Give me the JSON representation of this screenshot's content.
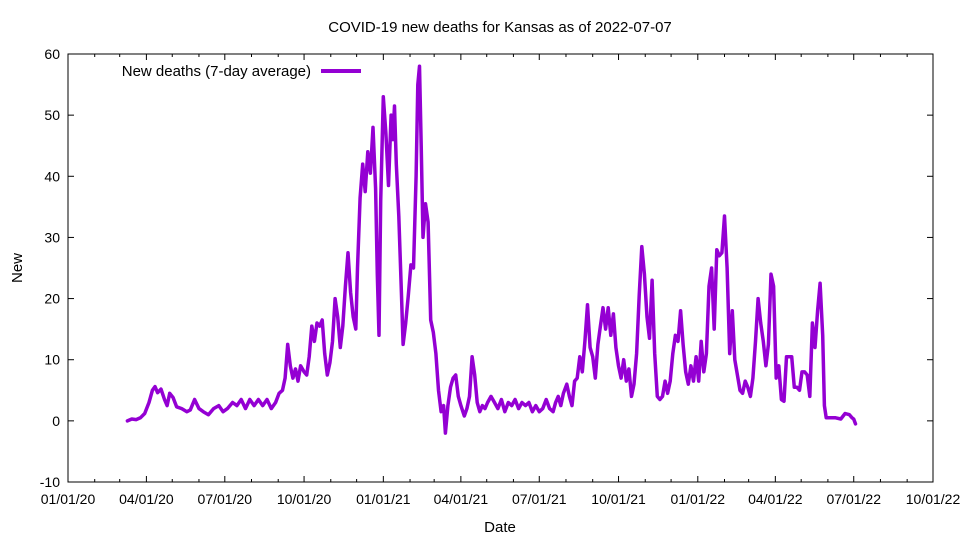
{
  "chart_data": {
    "type": "line",
    "title": "COVID-19 new deaths for Kansas as of 2022-07-07",
    "xlabel": "Date",
    "ylabel": "New",
    "xlim": [
      "2020-01-01",
      "2022-10-01"
    ],
    "ylim": [
      -10,
      60
    ],
    "x_ticks": [
      "01/01/20",
      "04/01/20",
      "07/01/20",
      "10/01/20",
      "01/01/21",
      "04/01/21",
      "07/01/21",
      "10/01/21",
      "01/01/22",
      "04/01/22",
      "07/01/22",
      "10/01/22"
    ],
    "x_tick_dates": [
      "2020-01-01",
      "2020-04-01",
      "2020-07-01",
      "2020-10-01",
      "2021-01-01",
      "2021-04-01",
      "2021-07-01",
      "2021-10-01",
      "2022-01-01",
      "2022-04-01",
      "2022-07-01",
      "2022-10-01"
    ],
    "y_ticks": [
      -10,
      0,
      10,
      20,
      30,
      40,
      50,
      60
    ],
    "legend_position": "top-left",
    "grid": false,
    "series": [
      {
        "name": "New deaths (7-day average)",
        "color": "#9400d3",
        "points": [
          [
            "2020-03-10",
            0.0
          ],
          [
            "2020-03-15",
            0.3
          ],
          [
            "2020-03-20",
            0.2
          ],
          [
            "2020-03-25",
            0.5
          ],
          [
            "2020-03-30",
            1.2
          ],
          [
            "2020-04-04",
            3.0
          ],
          [
            "2020-04-08",
            5.0
          ],
          [
            "2020-04-11",
            5.6
          ],
          [
            "2020-04-14",
            4.6
          ],
          [
            "2020-04-18",
            5.2
          ],
          [
            "2020-04-22",
            3.5
          ],
          [
            "2020-04-25",
            2.5
          ],
          [
            "2020-04-28",
            4.5
          ],
          [
            "2020-05-02",
            3.8
          ],
          [
            "2020-05-06",
            2.3
          ],
          [
            "2020-05-12",
            2.0
          ],
          [
            "2020-05-18",
            1.5
          ],
          [
            "2020-05-22",
            1.8
          ],
          [
            "2020-05-27",
            3.5
          ],
          [
            "2020-06-01",
            2.0
          ],
          [
            "2020-06-06",
            1.5
          ],
          [
            "2020-06-12",
            1.0
          ],
          [
            "2020-06-18",
            2.0
          ],
          [
            "2020-06-24",
            2.5
          ],
          [
            "2020-06-29",
            1.5
          ],
          [
            "2020-07-04",
            2.0
          ],
          [
            "2020-07-10",
            3.0
          ],
          [
            "2020-07-15",
            2.5
          ],
          [
            "2020-07-20",
            3.5
          ],
          [
            "2020-07-25",
            2.0
          ],
          [
            "2020-07-30",
            3.5
          ],
          [
            "2020-08-04",
            2.5
          ],
          [
            "2020-08-09",
            3.5
          ],
          [
            "2020-08-14",
            2.5
          ],
          [
            "2020-08-19",
            3.5
          ],
          [
            "2020-08-24",
            2.0
          ],
          [
            "2020-08-29",
            3.0
          ],
          [
            "2020-09-02",
            4.5
          ],
          [
            "2020-09-06",
            5.0
          ],
          [
            "2020-09-09",
            7.0
          ],
          [
            "2020-09-12",
            12.5
          ],
          [
            "2020-09-15",
            9.0
          ],
          [
            "2020-09-18",
            7.0
          ],
          [
            "2020-09-21",
            8.5
          ],
          [
            "2020-09-24",
            6.5
          ],
          [
            "2020-09-27",
            9.0
          ],
          [
            "2020-10-01",
            8.0
          ],
          [
            "2020-10-04",
            7.5
          ],
          [
            "2020-10-07",
            10.5
          ],
          [
            "2020-10-10",
            15.5
          ],
          [
            "2020-10-13",
            13.0
          ],
          [
            "2020-10-16",
            16.0
          ],
          [
            "2020-10-19",
            15.5
          ],
          [
            "2020-10-22",
            16.5
          ],
          [
            "2020-10-25",
            11.0
          ],
          [
            "2020-10-28",
            7.5
          ],
          [
            "2020-10-31",
            9.5
          ],
          [
            "2020-11-03",
            13.0
          ],
          [
            "2020-11-06",
            20.0
          ],
          [
            "2020-11-09",
            17.0
          ],
          [
            "2020-11-12",
            12.0
          ],
          [
            "2020-11-15",
            15.5
          ],
          [
            "2020-11-18",
            22.0
          ],
          [
            "2020-11-21",
            27.5
          ],
          [
            "2020-11-24",
            21.0
          ],
          [
            "2020-11-27",
            17.0
          ],
          [
            "2020-11-30",
            15.0
          ],
          [
            "2020-12-02",
            25.0
          ],
          [
            "2020-12-05",
            36.5
          ],
          [
            "2020-12-08",
            42.0
          ],
          [
            "2020-12-11",
            37.5
          ],
          [
            "2020-12-14",
            44.0
          ],
          [
            "2020-12-17",
            40.5
          ],
          [
            "2020-12-20",
            48.0
          ],
          [
            "2020-12-23",
            38.0
          ],
          [
            "2020-12-25",
            24.0
          ],
          [
            "2020-12-27",
            14.0
          ],
          [
            "2020-12-29",
            36.0
          ],
          [
            "2021-01-01",
            53.0
          ],
          [
            "2021-01-04",
            47.0
          ],
          [
            "2021-01-07",
            38.5
          ],
          [
            "2021-01-10",
            50.0
          ],
          [
            "2021-01-12",
            46.0
          ],
          [
            "2021-01-14",
            51.5
          ],
          [
            "2021-01-16",
            42.0
          ],
          [
            "2021-01-19",
            33.5
          ],
          [
            "2021-01-22",
            21.0
          ],
          [
            "2021-01-24",
            12.5
          ],
          [
            "2021-01-27",
            16.0
          ],
          [
            "2021-01-30",
            20.5
          ],
          [
            "2021-02-02",
            25.5
          ],
          [
            "2021-02-05",
            25.0
          ],
          [
            "2021-02-08",
            40.0
          ],
          [
            "2021-02-10",
            55.0
          ],
          [
            "2021-02-12",
            58.0
          ],
          [
            "2021-02-14",
            45.0
          ],
          [
            "2021-02-16",
            30.0
          ],
          [
            "2021-02-19",
            35.5
          ],
          [
            "2021-02-22",
            32.5
          ],
          [
            "2021-02-25",
            16.5
          ],
          [
            "2021-02-28",
            14.5
          ],
          [
            "2021-03-03",
            11.0
          ],
          [
            "2021-03-06",
            5.0
          ],
          [
            "2021-03-09",
            1.5
          ],
          [
            "2021-03-12",
            2.5
          ],
          [
            "2021-03-14",
            -2.0
          ],
          [
            "2021-03-17",
            2.5
          ],
          [
            "2021-03-20",
            5.5
          ],
          [
            "2021-03-23",
            7.0
          ],
          [
            "2021-03-26",
            7.5
          ],
          [
            "2021-03-29",
            4.0
          ],
          [
            "2021-04-01",
            2.5
          ],
          [
            "2021-04-05",
            0.8
          ],
          [
            "2021-04-08",
            2.0
          ],
          [
            "2021-04-11",
            4.0
          ],
          [
            "2021-04-14",
            10.5
          ],
          [
            "2021-04-17",
            7.5
          ],
          [
            "2021-04-20",
            3.0
          ],
          [
            "2021-04-23",
            1.5
          ],
          [
            "2021-04-26",
            2.5
          ],
          [
            "2021-04-29",
            2.0
          ],
          [
            "2021-05-02",
            3.0
          ],
          [
            "2021-05-06",
            4.0
          ],
          [
            "2021-05-10",
            3.0
          ],
          [
            "2021-05-14",
            2.0
          ],
          [
            "2021-05-18",
            3.5
          ],
          [
            "2021-05-22",
            1.5
          ],
          [
            "2021-05-26",
            3.0
          ],
          [
            "2021-05-30",
            2.5
          ],
          [
            "2021-06-03",
            3.5
          ],
          [
            "2021-06-07",
            2.0
          ],
          [
            "2021-06-11",
            3.0
          ],
          [
            "2021-06-15",
            2.5
          ],
          [
            "2021-06-19",
            3.0
          ],
          [
            "2021-06-23",
            1.5
          ],
          [
            "2021-06-27",
            2.5
          ],
          [
            "2021-07-01",
            1.5
          ],
          [
            "2021-07-05",
            2.0
          ],
          [
            "2021-07-09",
            3.5
          ],
          [
            "2021-07-13",
            2.0
          ],
          [
            "2021-07-17",
            1.5
          ],
          [
            "2021-07-20",
            3.0
          ],
          [
            "2021-07-23",
            4.0
          ],
          [
            "2021-07-26",
            2.5
          ],
          [
            "2021-07-29",
            4.5
          ],
          [
            "2021-08-02",
            6.0
          ],
          [
            "2021-08-05",
            4.0
          ],
          [
            "2021-08-08",
            2.5
          ],
          [
            "2021-08-11",
            6.5
          ],
          [
            "2021-08-14",
            7.0
          ],
          [
            "2021-08-17",
            10.5
          ],
          [
            "2021-08-20",
            8.0
          ],
          [
            "2021-08-23",
            13.0
          ],
          [
            "2021-08-26",
            19.0
          ],
          [
            "2021-08-29",
            12.0
          ],
          [
            "2021-09-01",
            10.5
          ],
          [
            "2021-09-04",
            7.0
          ],
          [
            "2021-09-07",
            12.5
          ],
          [
            "2021-09-10",
            15.5
          ],
          [
            "2021-09-13",
            18.5
          ],
          [
            "2021-09-16",
            15.0
          ],
          [
            "2021-09-19",
            18.5
          ],
          [
            "2021-09-22",
            14.0
          ],
          [
            "2021-09-25",
            17.5
          ],
          [
            "2021-09-28",
            12.0
          ],
          [
            "2021-10-01",
            9.0
          ],
          [
            "2021-10-04",
            7.0
          ],
          [
            "2021-10-07",
            10.0
          ],
          [
            "2021-10-10",
            6.5
          ],
          [
            "2021-10-13",
            8.5
          ],
          [
            "2021-10-16",
            4.0
          ],
          [
            "2021-10-19",
            6.0
          ],
          [
            "2021-10-22",
            11.0
          ],
          [
            "2021-10-25",
            20.5
          ],
          [
            "2021-10-28",
            28.5
          ],
          [
            "2021-10-31",
            24.0
          ],
          [
            "2021-11-03",
            17.0
          ],
          [
            "2021-11-06",
            13.5
          ],
          [
            "2021-11-09",
            23.0
          ],
          [
            "2021-11-12",
            11.0
          ],
          [
            "2021-11-15",
            4.0
          ],
          [
            "2021-11-18",
            3.5
          ],
          [
            "2021-11-21",
            4.0
          ],
          [
            "2021-11-24",
            6.5
          ],
          [
            "2021-11-27",
            4.5
          ],
          [
            "2021-11-30",
            6.5
          ],
          [
            "2021-12-03",
            11.0
          ],
          [
            "2021-12-06",
            14.0
          ],
          [
            "2021-12-09",
            13.0
          ],
          [
            "2021-12-12",
            18.0
          ],
          [
            "2021-12-15",
            12.5
          ],
          [
            "2021-12-18",
            8.0
          ],
          [
            "2021-12-21",
            6.0
          ],
          [
            "2021-12-24",
            9.0
          ],
          [
            "2021-12-27",
            6.5
          ],
          [
            "2021-12-30",
            10.5
          ],
          [
            "2022-01-02",
            6.5
          ],
          [
            "2022-01-05",
            13.0
          ],
          [
            "2022-01-08",
            8.0
          ],
          [
            "2022-01-11",
            11.0
          ],
          [
            "2022-01-14",
            22.0
          ],
          [
            "2022-01-17",
            25.0
          ],
          [
            "2022-01-20",
            15.0
          ],
          [
            "2022-01-23",
            28.0
          ],
          [
            "2022-01-26",
            27.0
          ],
          [
            "2022-01-29",
            27.5
          ],
          [
            "2022-02-01",
            33.5
          ],
          [
            "2022-02-04",
            25.0
          ],
          [
            "2022-02-07",
            11.0
          ],
          [
            "2022-02-10",
            18.0
          ],
          [
            "2022-02-13",
            10.0
          ],
          [
            "2022-02-16",
            7.5
          ],
          [
            "2022-02-19",
            5.0
          ],
          [
            "2022-02-22",
            4.5
          ],
          [
            "2022-02-25",
            6.5
          ],
          [
            "2022-02-28",
            5.5
          ],
          [
            "2022-03-03",
            4.0
          ],
          [
            "2022-03-06",
            7.0
          ],
          [
            "2022-03-09",
            13.0
          ],
          [
            "2022-03-12",
            20.0
          ],
          [
            "2022-03-15",
            16.0
          ],
          [
            "2022-03-18",
            13.0
          ],
          [
            "2022-03-21",
            9.0
          ],
          [
            "2022-03-24",
            12.5
          ],
          [
            "2022-03-27",
            24.0
          ],
          [
            "2022-03-30",
            22.0
          ],
          [
            "2022-04-02",
            7.0
          ],
          [
            "2022-04-05",
            9.0
          ],
          [
            "2022-04-08",
            3.5
          ],
          [
            "2022-04-11",
            3.2
          ],
          [
            "2022-04-14",
            10.5
          ],
          [
            "2022-04-17",
            10.5
          ],
          [
            "2022-04-20",
            10.5
          ],
          [
            "2022-04-23",
            5.5
          ],
          [
            "2022-04-26",
            5.5
          ],
          [
            "2022-04-29",
            5.0
          ],
          [
            "2022-05-02",
            8.0
          ],
          [
            "2022-05-05",
            8.0
          ],
          [
            "2022-05-08",
            7.5
          ],
          [
            "2022-05-11",
            4.0
          ],
          [
            "2022-05-14",
            16.0
          ],
          [
            "2022-05-17",
            12.0
          ],
          [
            "2022-05-20",
            18.0
          ],
          [
            "2022-05-23",
            22.5
          ],
          [
            "2022-05-26",
            14.0
          ],
          [
            "2022-05-28",
            2.5
          ],
          [
            "2022-05-30",
            0.5
          ],
          [
            "2022-06-04",
            0.5
          ],
          [
            "2022-06-10",
            0.5
          ],
          [
            "2022-06-16",
            0.3
          ],
          [
            "2022-06-21",
            1.2
          ],
          [
            "2022-06-26",
            1.0
          ],
          [
            "2022-06-29",
            0.5
          ],
          [
            "2022-07-01",
            0.3
          ],
          [
            "2022-07-03",
            -0.5
          ]
        ]
      }
    ]
  }
}
